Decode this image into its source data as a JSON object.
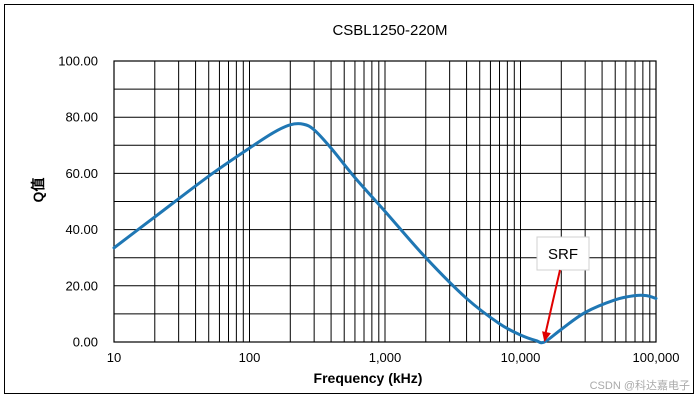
{
  "chart_data": {
    "type": "line",
    "title": "CSBL1250-220M",
    "xlabel": "Frequency (kHz)",
    "ylabel": "Q值",
    "x_scale": "log",
    "xlim": [
      10,
      100000
    ],
    "ylim": [
      0,
      100
    ],
    "x_ticks": [
      "10",
      "100",
      "1,000",
      "10,000",
      "100,000"
    ],
    "y_ticks": [
      "0.00",
      "20.00",
      "40.00",
      "60.00",
      "80.00",
      "100.00"
    ],
    "grid": true,
    "series": [
      {
        "color": "#1f77b4",
        "x": [
          10,
          20,
          50,
          100,
          150,
          200,
          250,
          300,
          400,
          600,
          1000,
          2000,
          4000,
          7000,
          10000,
          13000,
          15000,
          20000,
          30000,
          50000,
          70000,
          85000,
          100000
        ],
        "y": [
          33.5,
          44.5,
          59,
          69,
          74.5,
          77.3,
          77.5,
          75.5,
          69,
          58.5,
          46.5,
          30,
          15.5,
          6.5,
          2.5,
          0.5,
          0.0,
          4.5,
          10.5,
          15.0,
          16.5,
          16.5,
          15.5
        ]
      }
    ],
    "annotations": [
      {
        "text": "SRF",
        "x": 15000,
        "y": 0
      }
    ]
  },
  "watermark": "CSDN @科达嘉电子"
}
